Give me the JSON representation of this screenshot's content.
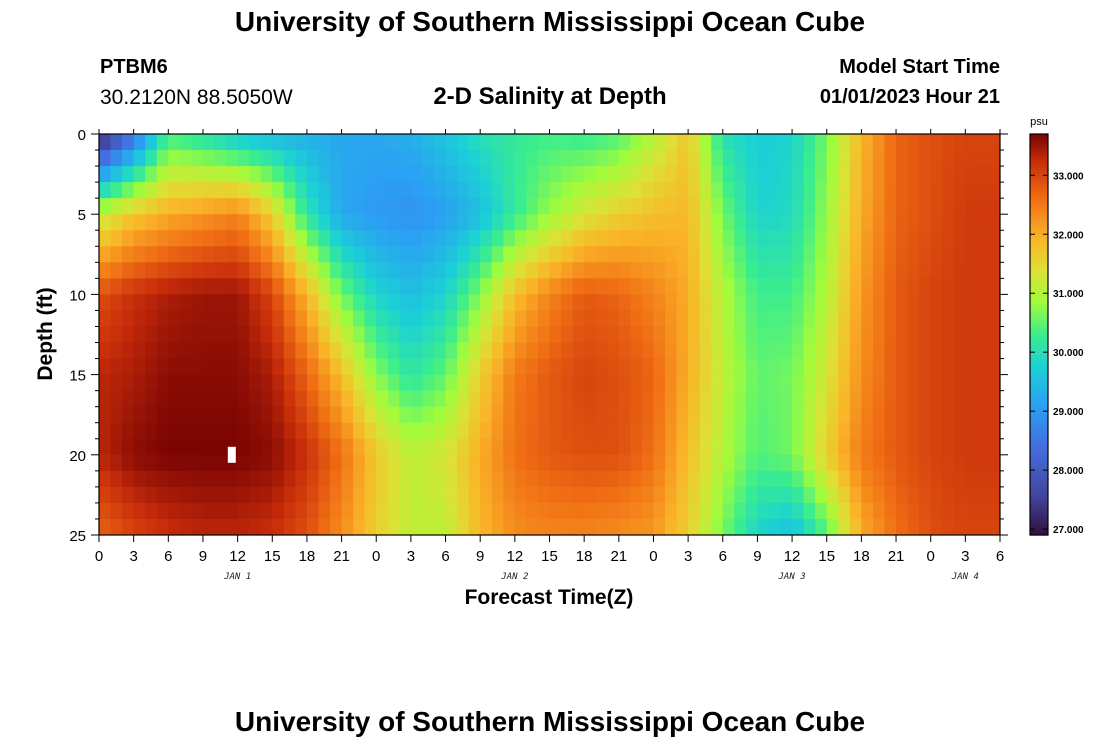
{
  "header": {
    "title_top": "University of Southern Mississippi Ocean Cube",
    "title_bottom": "University of Southern Mississippi Ocean Cube",
    "station_id": "PTBM6",
    "station_coords": "30.2120N  88.5050W",
    "plot_title": "2-D Salinity at Depth",
    "model_label": "Model Start Time",
    "model_date": "01/01/2023 Hour 21"
  },
  "chart_data": {
    "type": "heatmap",
    "title": "2-D Salinity at Depth",
    "xlabel": "Forecast Time(Z)",
    "ylabel": "Depth (ft)",
    "x_tick_labels": [
      "0",
      "3",
      "6",
      "9",
      "12",
      "15",
      "18",
      "21",
      "0",
      "3",
      "6",
      "9",
      "12",
      "15",
      "18",
      "21",
      "0",
      "3",
      "6",
      "9",
      "12",
      "15",
      "18",
      "21",
      "0",
      "3",
      "6"
    ],
    "x_range_hours": [
      0,
      78
    ],
    "day_labels": [
      {
        "label": "JAN 1",
        "hour": 12
      },
      {
        "label": "JAN 2",
        "hour": 36
      },
      {
        "label": "JAN 3",
        "hour": 60
      },
      {
        "label": "JAN 4",
        "hour": 75
      }
    ],
    "y_ticks": [
      0,
      5,
      10,
      15,
      20,
      25
    ],
    "y_range_ft": [
      0,
      25
    ],
    "colorbar": {
      "unit": "psu",
      "range": [
        26.9,
        33.7
      ],
      "ticks": [
        "27.000",
        "28.000",
        "29.000",
        "30.000",
        "31.000",
        "32.000",
        "33.000"
      ]
    },
    "depth_rows_ft": [
      0,
      5,
      10,
      15,
      20,
      25
    ],
    "hour_columns": [
      0,
      3,
      6,
      9,
      12,
      15,
      18,
      21,
      24,
      27,
      30,
      33,
      36,
      39,
      42,
      45,
      48,
      51,
      54,
      57,
      60,
      63,
      66,
      69,
      72,
      75,
      78
    ],
    "salinity_psu": [
      [
        27.0,
        28.4,
        30.3,
        30.0,
        29.6,
        29.4,
        29.3,
        29.2,
        29.2,
        29.3,
        29.6,
        30.0,
        30.2,
        30.3,
        30.2,
        30.4,
        31.0,
        31.7,
        30.0,
        29.7,
        29.8,
        30.6,
        31.9,
        32.7,
        32.9,
        33.0,
        33.0
      ],
      [
        31.1,
        31.7,
        32.0,
        32.2,
        32.4,
        31.6,
        30.1,
        29.2,
        29.0,
        28.9,
        29.1,
        29.5,
        30.2,
        30.8,
        31.3,
        31.6,
        31.8,
        31.9,
        30.6,
        29.8,
        29.9,
        30.8,
        32.0,
        32.7,
        32.9,
        33.1,
        33.1
      ],
      [
        32.9,
        33.2,
        33.4,
        33.5,
        33.5,
        33.0,
        31.9,
        30.6,
        29.8,
        29.5,
        29.8,
        30.7,
        31.8,
        32.4,
        32.8,
        32.7,
        32.4,
        32.0,
        31.0,
        30.3,
        30.3,
        31.0,
        32.2,
        32.8,
        33.0,
        33.1,
        33.1
      ],
      [
        33.3,
        33.4,
        33.6,
        33.6,
        33.6,
        33.4,
        32.7,
        31.8,
        30.7,
        30.1,
        30.5,
        31.6,
        32.5,
        32.8,
        33.0,
        32.9,
        32.7,
        32.0,
        31.1,
        30.5,
        30.6,
        31.3,
        32.3,
        32.8,
        33.0,
        33.1,
        33.1
      ],
      [
        33.3,
        33.6,
        33.7,
        33.7,
        33.7,
        33.6,
        33.2,
        32.6,
        31.7,
        31.1,
        31.3,
        32.0,
        32.6,
        32.8,
        32.9,
        32.9,
        32.6,
        31.8,
        31.0,
        30.4,
        30.6,
        31.6,
        32.5,
        32.8,
        33.0,
        33.1,
        33.1
      ],
      [
        32.7,
        33.0,
        33.2,
        33.3,
        33.3,
        33.2,
        32.9,
        32.3,
        31.6,
        31.1,
        31.1,
        31.9,
        32.3,
        32.4,
        32.4,
        32.3,
        32.2,
        31.6,
        30.6,
        29.8,
        29.5,
        30.4,
        32.0,
        32.6,
        32.9,
        33.0,
        33.0
      ]
    ],
    "annotations": [
      {
        "type": "white-marker",
        "hour": 11.5,
        "depth_ft": 20
      }
    ]
  }
}
